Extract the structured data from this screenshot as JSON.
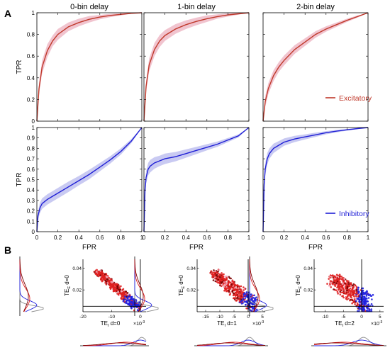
{
  "figure": {
    "panel_a_label": "A",
    "panel_b_label": "B"
  },
  "chart_data": [
    {
      "type": "line",
      "panel": "A",
      "row": "excitatory",
      "titles": [
        "0-bin delay",
        "1-bin delay",
        "2-bin delay"
      ],
      "xlabel": "",
      "ylabel": "TPR",
      "xlim": [
        0,
        1
      ],
      "ylim": [
        0,
        1
      ],
      "yticks": [
        0,
        0.2,
        0.4,
        0.6,
        0.8,
        1
      ],
      "ytick_labels": [
        "0",
        "0.2",
        "0.4",
        "0.6",
        "0.8",
        "1"
      ],
      "legend": {
        "label": "Excitatory",
        "placement": "bottom-right of third subplot"
      },
      "color": "#c0392b",
      "band_color": "#f1c4cf",
      "subplots": [
        {
          "delay": 0,
          "x": [
            0,
            0.02,
            0.05,
            0.1,
            0.15,
            0.2,
            0.3,
            0.4,
            0.5,
            0.6,
            0.7,
            0.8,
            0.9,
            1.0
          ],
          "y": [
            0,
            0.3,
            0.5,
            0.65,
            0.74,
            0.8,
            0.87,
            0.91,
            0.94,
            0.96,
            0.975,
            0.985,
            0.995,
            1.0
          ],
          "band": [
            0,
            0.05,
            0.06,
            0.06,
            0.05,
            0.05,
            0.04,
            0.035,
            0.03,
            0.02,
            0.015,
            0.01,
            0.005,
            0
          ]
        },
        {
          "delay": 1,
          "x": [
            0,
            0.02,
            0.05,
            0.1,
            0.15,
            0.2,
            0.3,
            0.4,
            0.5,
            0.6,
            0.7,
            0.8,
            0.9,
            1.0
          ],
          "y": [
            0,
            0.32,
            0.52,
            0.66,
            0.74,
            0.79,
            0.85,
            0.89,
            0.92,
            0.945,
            0.965,
            0.98,
            0.99,
            1.0
          ],
          "band": [
            0,
            0.05,
            0.06,
            0.06,
            0.055,
            0.05,
            0.045,
            0.04,
            0.035,
            0.03,
            0.02,
            0.015,
            0.008,
            0
          ]
        },
        {
          "delay": 2,
          "x": [
            0,
            0.02,
            0.05,
            0.1,
            0.15,
            0.2,
            0.3,
            0.4,
            0.5,
            0.6,
            0.7,
            0.8,
            0.9,
            1.0
          ],
          "y": [
            0,
            0.18,
            0.3,
            0.42,
            0.5,
            0.56,
            0.66,
            0.73,
            0.8,
            0.85,
            0.89,
            0.93,
            0.965,
            1.0
          ],
          "band": [
            0,
            0.05,
            0.05,
            0.05,
            0.045,
            0.045,
            0.04,
            0.035,
            0.03,
            0.025,
            0.02,
            0.015,
            0.01,
            0
          ]
        }
      ]
    },
    {
      "type": "line",
      "panel": "A",
      "row": "inhibitory",
      "xlabel": "FPR",
      "ylabel": "TPR",
      "xlim": [
        0,
        1
      ],
      "ylim": [
        0,
        1
      ],
      "xticks": [
        0,
        0.2,
        0.4,
        0.6,
        0.8,
        1
      ],
      "xtick_labels": [
        "0",
        "0.2",
        "0.4",
        "0.6",
        "0.8",
        "1"
      ],
      "yticks": [
        0,
        0.1,
        0.2,
        0.3,
        0.4,
        0.5,
        0.6,
        0.7,
        0.8,
        0.9,
        1
      ],
      "ytick_labels": [
        "0",
        "0.1",
        "0.2",
        "0.3",
        "0.4",
        "0.5",
        "0.6",
        "0.7",
        "0.8",
        "0.9",
        "1"
      ],
      "legend": {
        "label": "Inhibitory",
        "placement": "bottom-right of third subplot"
      },
      "color": "#1f1fd6",
      "band_color": "#c9caf2",
      "subplots": [
        {
          "delay": 0,
          "x": [
            0,
            0.01,
            0.03,
            0.05,
            0.1,
            0.15,
            0.2,
            0.3,
            0.4,
            0.5,
            0.6,
            0.7,
            0.8,
            0.9,
            1.0
          ],
          "y": [
            0,
            0.15,
            0.23,
            0.27,
            0.31,
            0.34,
            0.37,
            0.43,
            0.49,
            0.55,
            0.62,
            0.69,
            0.77,
            0.87,
            1.0
          ],
          "band": [
            0,
            0.04,
            0.05,
            0.05,
            0.05,
            0.05,
            0.05,
            0.05,
            0.045,
            0.045,
            0.04,
            0.035,
            0.03,
            0.02,
            0
          ]
        },
        {
          "delay": 1,
          "x": [
            0,
            0.01,
            0.02,
            0.04,
            0.06,
            0.1,
            0.15,
            0.2,
            0.3,
            0.4,
            0.5,
            0.6,
            0.7,
            0.8,
            0.9,
            1.0
          ],
          "y": [
            0,
            0.4,
            0.52,
            0.6,
            0.63,
            0.66,
            0.68,
            0.7,
            0.72,
            0.75,
            0.78,
            0.81,
            0.84,
            0.88,
            0.92,
            1.0
          ],
          "band": [
            0,
            0.05,
            0.06,
            0.06,
            0.06,
            0.055,
            0.05,
            0.05,
            0.045,
            0.04,
            0.035,
            0.03,
            0.025,
            0.02,
            0.015,
            0
          ]
        },
        {
          "delay": 2,
          "x": [
            0,
            0.01,
            0.02,
            0.04,
            0.06,
            0.1,
            0.15,
            0.2,
            0.3,
            0.4,
            0.5,
            0.6,
            0.7,
            0.8,
            0.9,
            1.0
          ],
          "y": [
            0,
            0.45,
            0.6,
            0.7,
            0.75,
            0.8,
            0.83,
            0.86,
            0.89,
            0.91,
            0.93,
            0.95,
            0.965,
            0.978,
            0.99,
            1.0
          ],
          "band": [
            0,
            0.06,
            0.06,
            0.055,
            0.05,
            0.045,
            0.04,
            0.035,
            0.03,
            0.025,
            0.02,
            0.015,
            0.012,
            0.008,
            0.004,
            0
          ]
        }
      ]
    },
    {
      "type": "scatter",
      "panel": "B",
      "colors": {
        "excitatory": "#e02020",
        "inhibitory": "#2020e0",
        "dark": "#7a0000",
        "pink": "#f2a6b8",
        "gray": "#8c8c8c"
      },
      "ylabel": "TE",
      "ylabel_sub": "E",
      "ylabel_suffix": "d=0",
      "yticks": [
        0.02,
        0.04
      ],
      "ytick_labels": [
        "0.02",
        "0.04"
      ],
      "ylim": [
        0,
        0.048
      ],
      "xunit_prefix": "×10",
      "xunit_exp": "-3",
      "subplots": [
        {
          "delay": 0,
          "xlabel": "TE",
          "xlabel_sub": "I",
          "xlabel_suffix": "d=0",
          "xlim": [
            -20,
            2
          ],
          "xticks": [
            -20,
            -10,
            0
          ],
          "xtick_labels": [
            "-20",
            "-10",
            "0"
          ],
          "cross": [
            0,
            0.005
          ],
          "cloud": {
            "x0": -15,
            "y0": 0.037,
            "x1": -1,
            "y1": 0.004,
            "spread": 0.0035
          }
        },
        {
          "delay": 1,
          "xlabel": "TE",
          "xlabel_sub": "I",
          "xlabel_suffix": "d=1",
          "xlim": [
            -18,
            6
          ],
          "xticks": [
            -15,
            -10,
            -5,
            0,
            5
          ],
          "xtick_labels": [
            "-15",
            "-10",
            "-5",
            "0",
            "5"
          ],
          "cross": [
            0,
            0.005
          ],
          "cloud": {
            "x0": -12,
            "y0": 0.035,
            "x1": 2,
            "y1": 0.006,
            "spread": 0.008
          }
        },
        {
          "delay": 2,
          "xlabel": "TE",
          "xlabel_sub": "I",
          "xlabel_suffix": "d=2",
          "xlim": [
            -13,
            6
          ],
          "xticks": [
            -10,
            -5,
            0,
            5
          ],
          "xtick_labels": [
            "-10",
            "-5",
            "0",
            "5"
          ],
          "cross": [
            0,
            0.005
          ],
          "cloud": {
            "x0": -8,
            "y0": 0.03,
            "x1": 2,
            "y1": 0.006,
            "spread": 0.011
          }
        }
      ]
    }
  ]
}
